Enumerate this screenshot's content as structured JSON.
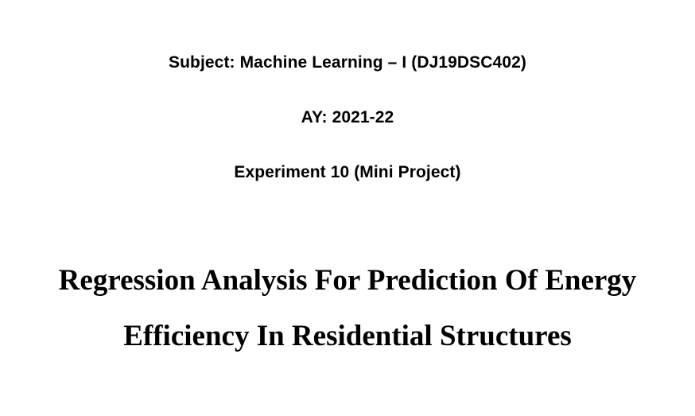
{
  "document": {
    "subject_line": "Subject: Machine Learning – I (DJ19DSC402)",
    "ay_line": "AY: 2021-22",
    "experiment_line": "Experiment 10 (Mini Project)",
    "title_line_1": "Regression Analysis For Prediction Of Energy",
    "title_line_2": "Efficiency In Residential Structures"
  }
}
